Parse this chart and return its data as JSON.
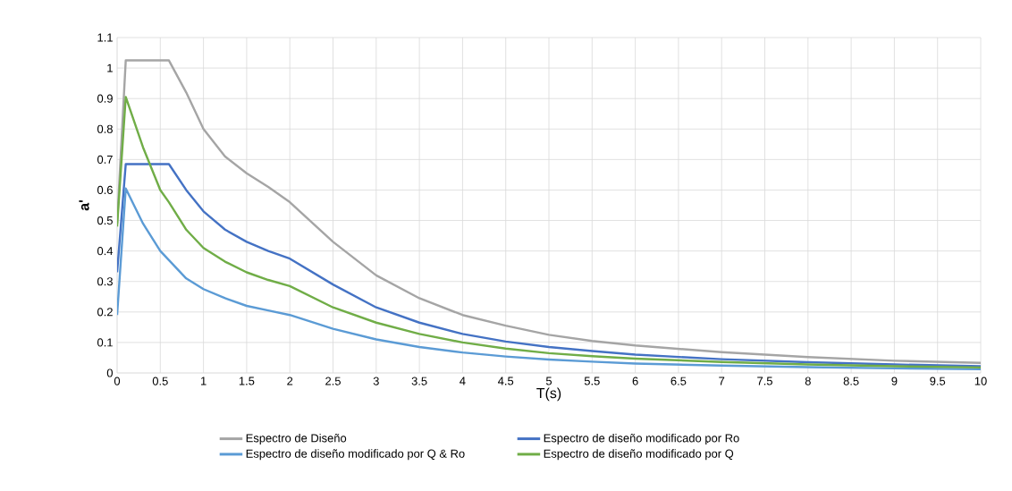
{
  "chart_data": {
    "type": "line",
    "xlabel": "T(s)",
    "ylabel": "a'",
    "xlim": [
      0,
      10
    ],
    "ylim": [
      0,
      1.1
    ],
    "xticks": [
      0,
      0.5,
      1,
      1.5,
      2,
      2.5,
      3,
      3.5,
      4,
      4.5,
      5,
      5.5,
      6,
      6.5,
      7,
      7.5,
      8,
      8.5,
      9,
      9.5,
      10
    ],
    "yticks": [
      0,
      0.1,
      0.2,
      0.3,
      0.4,
      0.5,
      0.6,
      0.7,
      0.8,
      0.9,
      1,
      1.1
    ],
    "grid": true,
    "legend": "bottom",
    "marker": "none",
    "line_style": "solid",
    "series": [
      {
        "name": "Espectro de Diseño",
        "color": "#a5a5a5",
        "x": [
          0,
          0.1,
          0.6,
          0.8,
          1,
          1.25,
          1.5,
          1.75,
          2,
          2.5,
          3,
          3.5,
          4,
          4.5,
          5,
          5.5,
          6,
          7,
          8,
          9,
          10
        ],
        "values": [
          0.49,
          1.025,
          1.025,
          0.92,
          0.8,
          0.71,
          0.655,
          0.61,
          0.56,
          0.43,
          0.32,
          0.245,
          0.19,
          0.155,
          0.125,
          0.105,
          0.09,
          0.068,
          0.052,
          0.04,
          0.033
        ]
      },
      {
        "name": "Espectro de diseño modificado por Ro",
        "color": "#4472c4",
        "x": [
          0,
          0.1,
          0.6,
          0.8,
          1,
          1.25,
          1.5,
          1.75,
          2,
          2.5,
          3,
          3.5,
          4,
          4.5,
          5,
          5.5,
          6,
          7,
          8,
          9,
          10
        ],
        "values": [
          0.33,
          0.685,
          0.685,
          0.6,
          0.53,
          0.47,
          0.43,
          0.4,
          0.375,
          0.29,
          0.215,
          0.165,
          0.128,
          0.103,
          0.085,
          0.072,
          0.06,
          0.045,
          0.035,
          0.028,
          0.022
        ]
      },
      {
        "name": "Espectro de diseño modificado por Q & Ro",
        "color": "#5b9bd5",
        "x": [
          0,
          0.1,
          0.3,
          0.5,
          0.6,
          0.8,
          1,
          1.25,
          1.5,
          1.75,
          2,
          2.5,
          3,
          3.5,
          4,
          4.5,
          5,
          5.5,
          6,
          7,
          8,
          9,
          10
        ],
        "values": [
          0.19,
          0.605,
          0.49,
          0.4,
          0.37,
          0.31,
          0.275,
          0.245,
          0.22,
          0.205,
          0.19,
          0.145,
          0.11,
          0.085,
          0.067,
          0.054,
          0.044,
          0.037,
          0.031,
          0.024,
          0.019,
          0.015,
          0.012
        ]
      },
      {
        "name": "Espectro de diseño modificado por Q",
        "color": "#70ad47",
        "x": [
          0,
          0.1,
          0.3,
          0.5,
          0.6,
          0.8,
          1,
          1.25,
          1.5,
          1.75,
          2,
          2.5,
          3,
          3.5,
          4,
          4.5,
          5,
          5.5,
          6,
          7,
          8,
          9,
          10
        ],
        "values": [
          0.48,
          0.905,
          0.74,
          0.6,
          0.56,
          0.47,
          0.41,
          0.365,
          0.33,
          0.305,
          0.285,
          0.215,
          0.165,
          0.128,
          0.1,
          0.08,
          0.065,
          0.055,
          0.047,
          0.036,
          0.028,
          0.022,
          0.018
        ]
      }
    ]
  }
}
